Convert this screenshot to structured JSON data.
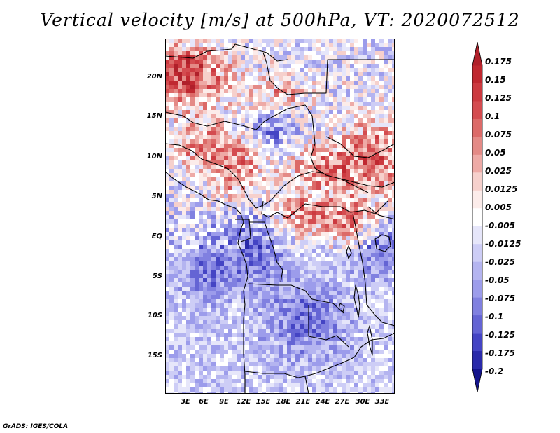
{
  "title": "Vertical velocity [m/s] at 500hPa, VT: 2020072512",
  "credit": "GrADS: IGES/COLA",
  "lat_labels": [
    "20N",
    "15N",
    "10N",
    "5N",
    "EQ",
    "5S",
    "10S",
    "15S"
  ],
  "lon_labels": [
    "3E",
    "6E",
    "9E",
    "12E",
    "15E",
    "18E",
    "21E",
    "24E",
    "27E",
    "30E",
    "33E"
  ],
  "colorbar": {
    "levels": [
      "0.175",
      "0.15",
      "0.125",
      "0.1",
      "0.075",
      "0.05",
      "0.025",
      "0.0125",
      "0.005",
      "-0.005",
      "-0.0125",
      "-0.025",
      "-0.05",
      "-0.075",
      "-0.1",
      "-0.125",
      "-0.175",
      "-0.2"
    ],
    "colors": [
      "#b0202a",
      "#c02830",
      "#cc3a40",
      "#d44c50",
      "#dc6a68",
      "#e48a86",
      "#eeaaa6",
      "#f6d0cc",
      "#fcecea",
      "#ffffff",
      "#e6e6fa",
      "#cdcdf6",
      "#b4b4f0",
      "#9c9ceb",
      "#8080e0",
      "#6464d4",
      "#4444c4",
      "#2a2aaa",
      "#14148c"
    ]
  }
}
